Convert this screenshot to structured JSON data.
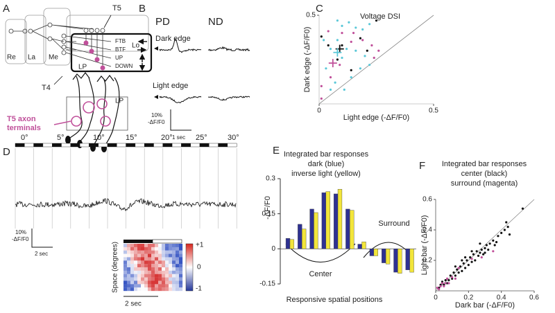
{
  "labels": {
    "a": "A",
    "b": "B",
    "c": "C",
    "d": "D",
    "e": "E",
    "f": "F"
  },
  "panel_a": {
    "regions": [
      "Re",
      "La",
      "Me",
      "Lo"
    ],
    "t5": "T5",
    "t4": "T4",
    "lp": "LP",
    "layers": [
      "FTB",
      "BTF",
      "UP",
      "DOWN"
    ],
    "terminals": [
      "T5 axon",
      "terminals"
    ],
    "lp_lower": "LP"
  },
  "panel_b": {
    "columns": [
      "PD",
      "ND"
    ],
    "rows": [
      "Dark edge",
      "Light edge"
    ],
    "scale": [
      "10%",
      "-ΔF/F0"
    ],
    "time": "1 sec"
  },
  "panel_d": {
    "angles": [
      "0°",
      "5°",
      "10°",
      "15°",
      "20°",
      "25°",
      "30°"
    ],
    "scale": [
      "10%",
      "-ΔF/F0"
    ],
    "time": "2 sec",
    "heatmap_ylabel": "Space (degrees)",
    "heatmap_time": "2 sec",
    "colorbar": [
      "+1",
      "0",
      "-1"
    ]
  },
  "chart_data": [
    {
      "type": "scatter",
      "title": "Voltage DSI",
      "xlabel": "Light edge (-ΔF/F0)",
      "ylabel": "Dark edge (-ΔF/F0)",
      "xlim": [
        0,
        0.5
      ],
      "ylim": [
        0,
        0.5
      ],
      "xticks": [
        0,
        0.5
      ],
      "yticks": [
        0.5
      ],
      "identity_line": true,
      "series": [
        {
          "color": "#5bc8d8",
          "marker": "dot",
          "x": [
            0.08,
            0.1,
            0.13,
            0.16,
            0.19,
            0.22,
            0.08,
            0.12,
            0.05,
            0.02,
            0.16,
            0.2,
            0.18,
            0.1,
            0.03,
            0.07,
            0.11,
            0.14,
            0.22,
            0.05
          ],
          "y": [
            0.47,
            0.44,
            0.46,
            0.43,
            0.42,
            0.45,
            0.36,
            0.31,
            0.31,
            0.36,
            0.3,
            0.27,
            0.2,
            0.26,
            0.2,
            0.12,
            0.08,
            0.15,
            0.22,
            0.08
          ]
        },
        {
          "color": "#c0509a",
          "marker": "dot",
          "x": [
            0.04,
            0.1,
            0.15,
            0.19,
            0.23,
            0.26,
            0.24,
            0.01,
            0.01,
            0.05,
            0.14,
            0.09
          ],
          "y": [
            0.41,
            0.4,
            0.4,
            0.36,
            0.33,
            0.3,
            0.26,
            0.1,
            0.03,
            0.15,
            0.35,
            0.22
          ]
        },
        {
          "color": "#111111",
          "marker": "dot",
          "x": [
            0.01,
            0.04,
            0.1,
            0.08,
            0.25,
            0.18,
            0.21,
            0.14
          ],
          "y": [
            0.38,
            0.33,
            0.33,
            0.25,
            0.47,
            0.37,
            0.3,
            0.19
          ]
        },
        {
          "color": "#111111",
          "marker": "cross",
          "x": [
            0.09
          ],
          "y": [
            0.31
          ]
        },
        {
          "color": "#5bc8d8",
          "marker": "cross",
          "x": [
            0.08
          ],
          "y": [
            0.29
          ]
        },
        {
          "color": "#c0509a",
          "marker": "cross",
          "x": [
            0.06
          ],
          "y": [
            0.23
          ]
        }
      ]
    },
    {
      "type": "bar",
      "title": [
        "Integrated bar responses",
        "dark (blue)",
        "inverse light (yellow)"
      ],
      "ylabel": "-ΔF/F0",
      "xlabel": "Responsive spatial positions",
      "annotations": [
        "Center",
        "Surround"
      ],
      "categories": [
        null,
        null,
        null,
        null,
        null,
        null,
        null,
        null,
        null,
        null,
        null
      ],
      "series": [
        {
          "color": "#2e3192",
          "values": [
            0.045,
            0.105,
            0.17,
            0.24,
            0.235,
            0.17,
            0.02,
            -0.03,
            -0.06,
            -0.1,
            -0.09
          ]
        },
        {
          "color": "#f2e53a",
          "values": [
            0.04,
            0.085,
            0.155,
            0.245,
            0.255,
            0.165,
            0.03,
            -0.03,
            -0.065,
            -0.105,
            -0.1
          ]
        }
      ],
      "ylim": [
        -0.15,
        0.3
      ],
      "yticks": [
        -0.15,
        0,
        0.15,
        0.3
      ]
    },
    {
      "type": "scatter",
      "title": [
        "Integrated bar responses",
        "center (black)",
        "surround (magenta)"
      ],
      "xlabel": "Dark bar (-ΔF/F0)",
      "ylabel": "Light bar (-ΔF/F0)",
      "xlim": [
        0,
        0.6
      ],
      "ylim": [
        0,
        0.6
      ],
      "xticks": [
        0,
        0.2,
        0.4,
        0.6
      ],
      "yticks": [
        0.2,
        0.4,
        0.6
      ],
      "identity_line": true,
      "series": [
        {
          "color": "#111111",
          "marker": "dot",
          "x": [
            0.02,
            0.03,
            0.05,
            0.06,
            0.08,
            0.09,
            0.1,
            0.11,
            0.12,
            0.13,
            0.14,
            0.15,
            0.16,
            0.17,
            0.18,
            0.19,
            0.2,
            0.21,
            0.22,
            0.23,
            0.24,
            0.25,
            0.26,
            0.27,
            0.28,
            0.29,
            0.3,
            0.31,
            0.32,
            0.33,
            0.35,
            0.37,
            0.38,
            0.4,
            0.42,
            0.43,
            0.44,
            0.45,
            0.53,
            0.12,
            0.18,
            0.22,
            0.07,
            0.04,
            0.16,
            0.27,
            0.3,
            0.36
          ],
          "y": [
            0.02,
            0.04,
            0.04,
            0.07,
            0.07,
            0.1,
            0.08,
            0.12,
            0.1,
            0.14,
            0.12,
            0.16,
            0.13,
            0.18,
            0.15,
            0.2,
            0.17,
            0.22,
            0.19,
            0.24,
            0.2,
            0.26,
            0.23,
            0.25,
            0.27,
            0.24,
            0.28,
            0.3,
            0.27,
            0.31,
            0.33,
            0.32,
            0.36,
            0.38,
            0.4,
            0.45,
            0.42,
            0.37,
            0.54,
            0.16,
            0.22,
            0.26,
            0.05,
            0.06,
            0.2,
            0.31,
            0.25,
            0.3
          ]
        },
        {
          "color": "#c0509a",
          "marker": "dot",
          "x": [
            0.01,
            0.02,
            0.03,
            0.04,
            0.05,
            0.06,
            0.07,
            0.08,
            0.1,
            0.12,
            0.14,
            0.22,
            0.28,
            0.35
          ],
          "y": [
            0.02,
            0.01,
            0.03,
            0.05,
            0.03,
            0.05,
            0.08,
            0.05,
            0.09,
            0.08,
            0.15,
            0.21,
            0.22,
            0.26
          ]
        }
      ]
    }
  ]
}
